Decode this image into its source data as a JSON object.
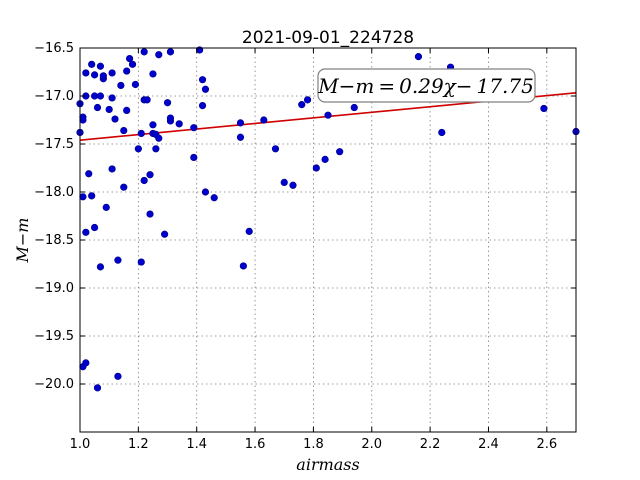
{
  "chart_data": {
    "type": "scatter",
    "title": "2021-09-01_224728",
    "xlabel": "airmass",
    "ylabel": "M−m",
    "xlim": [
      1.0,
      2.7
    ],
    "ylim": [
      -20.5,
      -16.5
    ],
    "y_inverted": true,
    "xticks": [
      1.0,
      1.2,
      1.4,
      1.6,
      1.8,
      2.0,
      2.2,
      2.4,
      2.6
    ],
    "xtick_labels": [
      "1.0",
      "1.2",
      "1.4",
      "1.6",
      "1.8",
      "2.0",
      "2.2",
      "2.4",
      "2.6"
    ],
    "yticks": [
      -16.5,
      -17.0,
      -17.5,
      -18.0,
      -18.5,
      -19.0,
      -19.5,
      -20.0
    ],
    "ytick_labels": [
      "−16.5",
      "−17.0",
      "−17.5",
      "−18.0",
      "−18.5",
      "−19.0",
      "−19.5",
      "−20.0"
    ],
    "grid": true,
    "annotation": "M−m = 0.29χ− 17.75",
    "fit": {
      "slope": 0.29,
      "intercept": -17.75,
      "color": "#d00000"
    },
    "point_color": "#0000cc",
    "points": [
      [
        1.0,
        -17.38
      ],
      [
        1.0,
        -17.08
      ],
      [
        1.01,
        -17.25
      ],
      [
        1.01,
        -17.22
      ],
      [
        1.01,
        -18.05
      ],
      [
        1.01,
        -19.82
      ],
      [
        1.02,
        -17.0
      ],
      [
        1.02,
        -16.76
      ],
      [
        1.02,
        -19.78
      ],
      [
        1.02,
        -18.42
      ],
      [
        1.03,
        -17.81
      ],
      [
        1.04,
        -18.04
      ],
      [
        1.04,
        -16.67
      ],
      [
        1.05,
        -16.78
      ],
      [
        1.05,
        -18.37
      ],
      [
        1.05,
        -17.0
      ],
      [
        1.06,
        -17.12
      ],
      [
        1.06,
        -20.04
      ],
      [
        1.07,
        -16.69
      ],
      [
        1.07,
        -17.0
      ],
      [
        1.07,
        -18.78
      ],
      [
        1.08,
        -16.82
      ],
      [
        1.08,
        -16.79
      ],
      [
        1.09,
        -18.16
      ],
      [
        1.1,
        -17.14
      ],
      [
        1.11,
        -17.02
      ],
      [
        1.11,
        -16.76
      ],
      [
        1.11,
        -17.76
      ],
      [
        1.12,
        -17.24
      ],
      [
        1.13,
        -19.92
      ],
      [
        1.13,
        -18.71
      ],
      [
        1.14,
        -16.89
      ],
      [
        1.15,
        -17.36
      ],
      [
        1.15,
        -17.95
      ],
      [
        1.16,
        -16.74
      ],
      [
        1.16,
        -17.15
      ],
      [
        1.17,
        -16.61
      ],
      [
        1.18,
        -16.67
      ],
      [
        1.19,
        -16.88
      ],
      [
        1.2,
        -17.55
      ],
      [
        1.21,
        -18.73
      ],
      [
        1.21,
        -17.39
      ],
      [
        1.22,
        -16.54
      ],
      [
        1.22,
        -17.04
      ],
      [
        1.22,
        -17.88
      ],
      [
        1.23,
        -17.04
      ],
      [
        1.24,
        -18.23
      ],
      [
        1.24,
        -17.82
      ],
      [
        1.25,
        -16.77
      ],
      [
        1.25,
        -17.3
      ],
      [
        1.25,
        -17.39
      ],
      [
        1.26,
        -17.55
      ],
      [
        1.26,
        -17.4
      ],
      [
        1.27,
        -17.44
      ],
      [
        1.27,
        -16.57
      ],
      [
        1.29,
        -18.44
      ],
      [
        1.3,
        -17.07
      ],
      [
        1.31,
        -17.26
      ],
      [
        1.31,
        -16.54
      ],
      [
        1.31,
        -17.23
      ],
      [
        1.34,
        -17.29
      ],
      [
        1.39,
        -17.33
      ],
      [
        1.39,
        -17.64
      ],
      [
        1.41,
        -16.52
      ],
      [
        1.42,
        -17.1
      ],
      [
        1.42,
        -16.83
      ],
      [
        1.43,
        -16.93
      ],
      [
        1.43,
        -18.0
      ],
      [
        1.46,
        -18.06
      ],
      [
        1.55,
        -17.43
      ],
      [
        1.55,
        -17.28
      ],
      [
        1.56,
        -18.77
      ],
      [
        1.58,
        -18.41
      ],
      [
        1.63,
        -17.25
      ],
      [
        1.67,
        -17.55
      ],
      [
        1.7,
        -17.9
      ],
      [
        1.73,
        -17.93
      ],
      [
        1.76,
        -17.09
      ],
      [
        1.78,
        -17.04
      ],
      [
        1.81,
        -17.75
      ],
      [
        1.84,
        -17.66
      ],
      [
        1.85,
        -17.2
      ],
      [
        1.89,
        -17.58
      ],
      [
        1.94,
        -17.12
      ],
      [
        2.16,
        -16.59
      ],
      [
        2.24,
        -17.38
      ],
      [
        2.27,
        -16.7
      ],
      [
        2.59,
        -17.13
      ],
      [
        2.7,
        -17.37
      ]
    ]
  }
}
